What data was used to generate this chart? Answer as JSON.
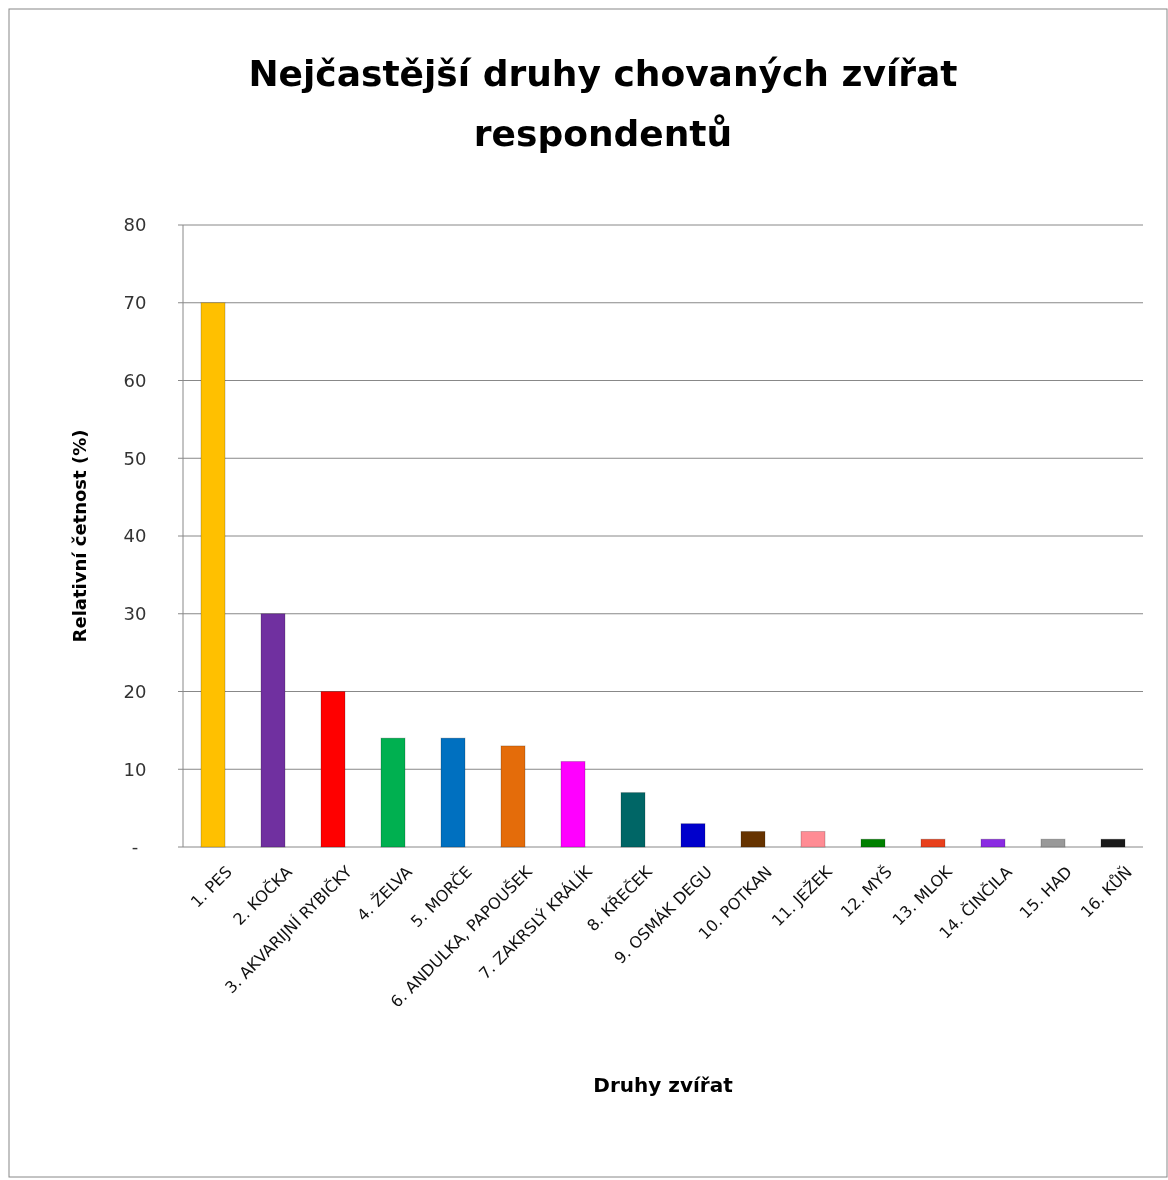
{
  "chart_data": {
    "type": "bar",
    "title": "Nejčastější druhy chovaných zvířat respondentů",
    "xlabel": "Druhy zvířat",
    "ylabel": "Relativní četnost (%)",
    "categories": [
      "1. PES",
      "2. KOČKA",
      "3. AKVARIJNÍ RYBIČKY",
      "4. ŽELVA",
      "5. MORČE",
      "6. ANDULKA, PAPOUŠEK",
      "7. ZAKRSLÝ KRÁLÍK",
      "8. KŘEČEK",
      "9. OSMÁK DEGU",
      "10. POTKAN",
      "11. JEŽEK",
      "12. MYŠ",
      "13. MLOK",
      "14. ČINČILA",
      "15. HAD",
      "16. KŮŇ"
    ],
    "values": [
      70,
      30,
      20,
      14,
      14,
      13,
      11,
      7,
      3,
      2,
      2,
      1,
      1,
      1,
      1,
      1
    ],
    "colors": [
      "#ffc000",
      "#7030a0",
      "#ff0000",
      "#00b050",
      "#0070c0",
      "#e46c0a",
      "#ff00ff",
      "#006666",
      "#0000cc",
      "#663300",
      "#ff8c94",
      "#008000",
      "#e8401c",
      "#8a2be2",
      "#999999",
      "#1a1a1a"
    ],
    "ylim": [
      0,
      80
    ],
    "yticks": [
      {
        "value": 0,
        "label": "-"
      },
      10,
      20,
      30,
      40,
      50,
      60,
      70,
      80
    ],
    "grid": "y"
  }
}
